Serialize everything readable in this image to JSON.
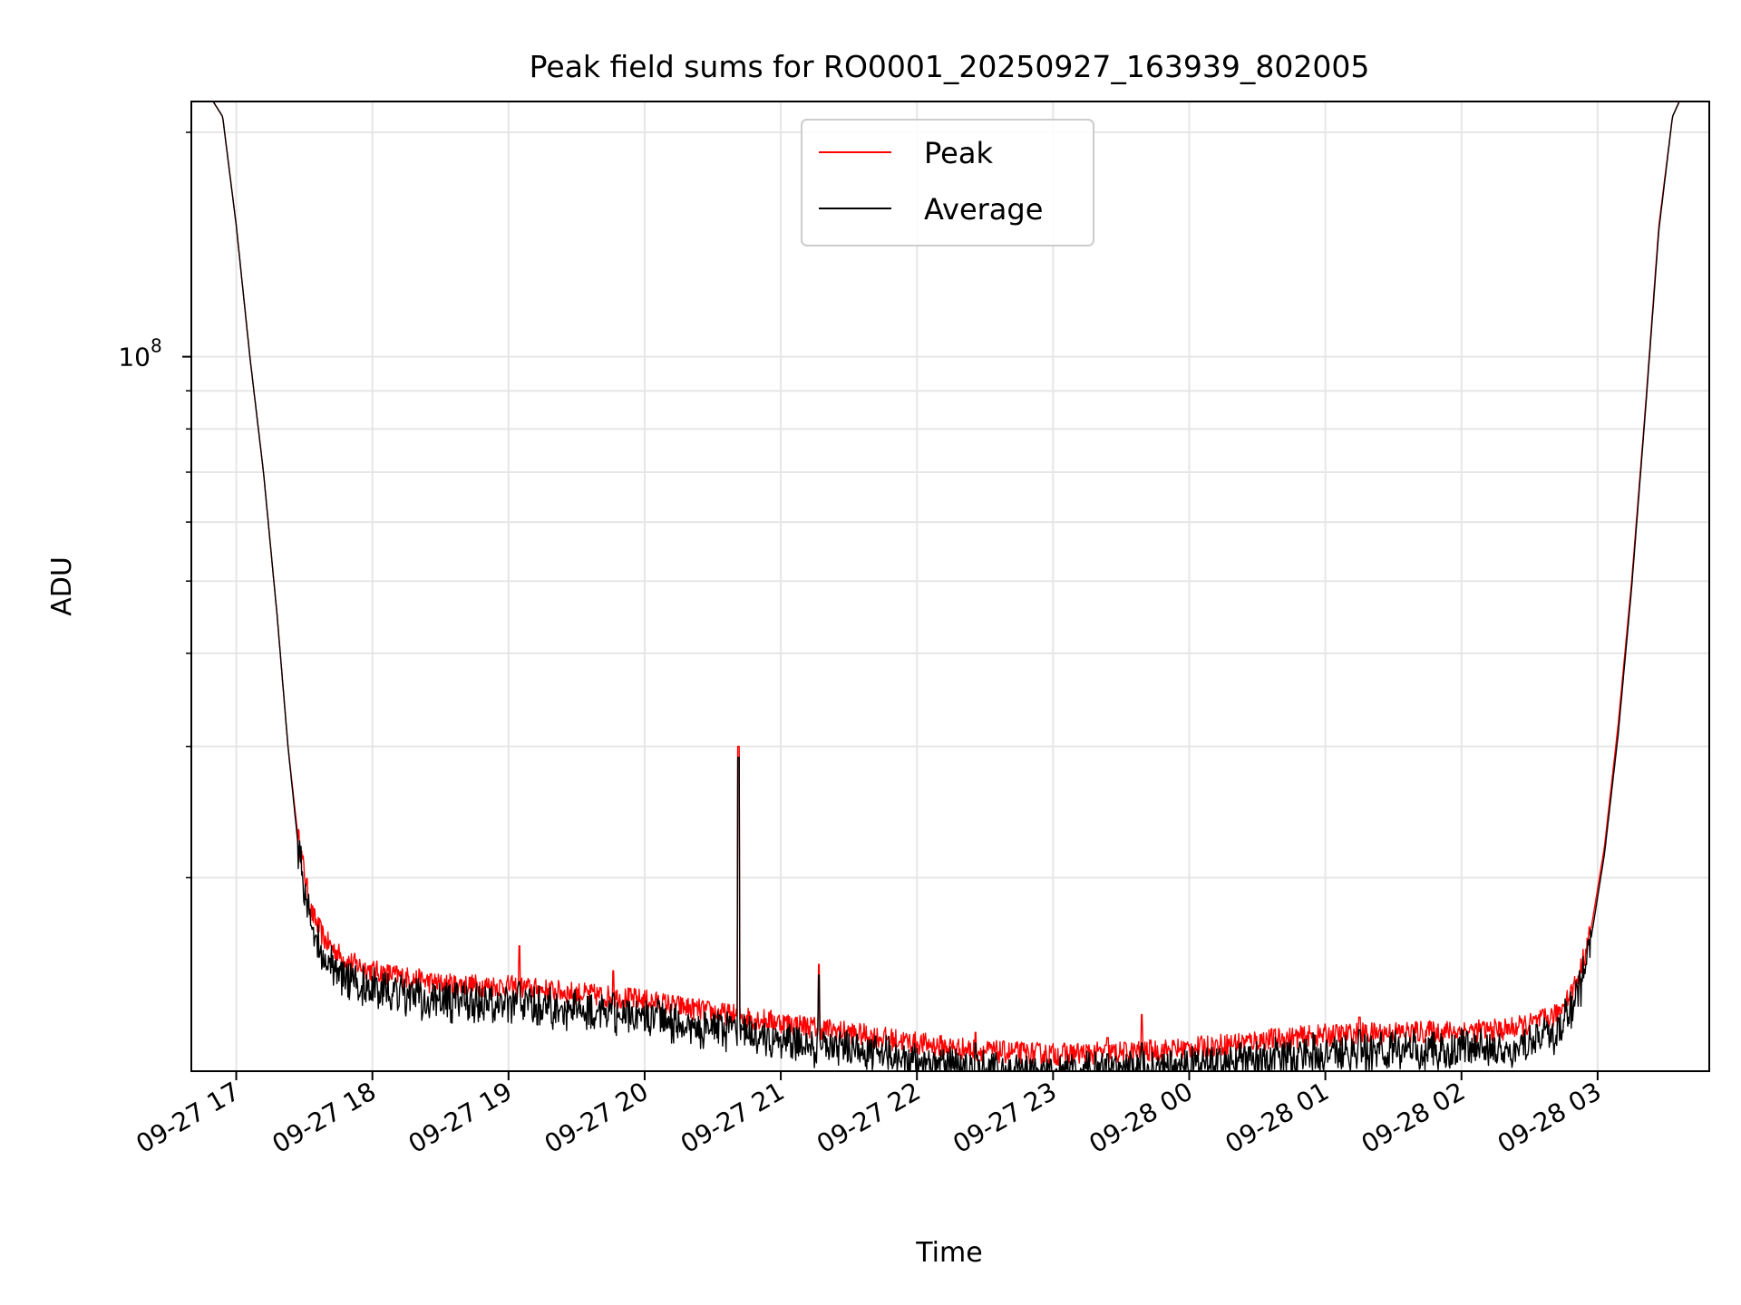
{
  "chart_data": {
    "type": "line",
    "title": "Peak field sums for RO0001_20250927_163939_802005",
    "xlabel": "Time",
    "ylabel": "ADU",
    "yscale": "log",
    "ylim": [
      11000000,
      220000000
    ],
    "xlim_hours": [
      -0.33,
      10.82
    ],
    "grid": true,
    "legend_position": "top-center",
    "x_ticks": [
      {
        "hour": 0,
        "label": "09-27 17"
      },
      {
        "hour": 1,
        "label": "09-27 18"
      },
      {
        "hour": 2,
        "label": "09-27 19"
      },
      {
        "hour": 3,
        "label": "09-27 20"
      },
      {
        "hour": 4,
        "label": "09-27 21"
      },
      {
        "hour": 5,
        "label": "09-27 22"
      },
      {
        "hour": 6,
        "label": "09-27 23"
      },
      {
        "hour": 7,
        "label": "09-28 00"
      },
      {
        "hour": 8,
        "label": "09-28 01"
      },
      {
        "hour": 9,
        "label": "09-28 02"
      },
      {
        "hour": 10,
        "label": "09-28 03"
      }
    ],
    "y_major_tick": {
      "value": 100000000,
      "base": "10",
      "exp": "8"
    },
    "y_minor_ticks": [
      20000000,
      30000000,
      40000000,
      50000000,
      60000000,
      70000000,
      80000000,
      90000000,
      200000000
    ],
    "series": [
      {
        "name": "Peak",
        "color": "#ff0000",
        "x_hours": [
          -0.33,
          -0.17,
          -0.1,
          0.0,
          0.1,
          0.2,
          0.3,
          0.38,
          0.45,
          0.55,
          0.65,
          0.8,
          1.0,
          1.5,
          2.0,
          2.5,
          3.0,
          3.5,
          4.0,
          4.5,
          5.0,
          5.5,
          6.0,
          6.5,
          7.0,
          7.5,
          8.0,
          8.5,
          9.0,
          9.3,
          9.5,
          9.7,
          9.85,
          9.95,
          10.05,
          10.15,
          10.25,
          10.35,
          10.45,
          10.55,
          10.6,
          10.82
        ],
        "values": [
          220000000,
          220000000,
          210000000,
          150000000,
          100000000,
          70000000,
          45000000,
          30000000,
          23000000,
          18000000,
          16500000,
          15500000,
          15000000,
          14400000,
          14300000,
          14000000,
          13700000,
          13200000,
          12800000,
          12400000,
          12000000,
          11700000,
          11600000,
          11650000,
          11800000,
          12100000,
          12300000,
          12400000,
          12450000,
          12500000,
          12700000,
          13100000,
          14500000,
          17000000,
          22000000,
          32000000,
          50000000,
          85000000,
          150000000,
          210000000,
          220000000,
          220000000
        ]
      },
      {
        "name": "Average",
        "color": "#000000",
        "x_hours": [
          -0.33,
          -0.17,
          -0.1,
          0.0,
          0.1,
          0.2,
          0.3,
          0.38,
          0.45,
          0.55,
          0.65,
          0.8,
          1.0,
          1.5,
          2.0,
          2.5,
          3.0,
          3.5,
          4.0,
          4.5,
          5.0,
          5.5,
          6.0,
          6.5,
          7.0,
          7.5,
          8.0,
          8.5,
          9.0,
          9.3,
          9.5,
          9.7,
          9.85,
          9.95,
          10.05,
          10.15,
          10.25,
          10.35,
          10.45,
          10.55,
          10.6,
          10.82
        ],
        "values": [
          220000000,
          220000000,
          210000000,
          150000000,
          100000000,
          70000000,
          45000000,
          30000000,
          22500000,
          17500000,
          15800000,
          14900000,
          14400000,
          13900000,
          13800000,
          13500000,
          13200000,
          12700000,
          12300000,
          11900000,
          11500000,
          11200000,
          11100000,
          11150000,
          11300000,
          11600000,
          11800000,
          11900000,
          11950000,
          12000000,
          12200000,
          12600000,
          14000000,
          16500000,
          21500000,
          31000000,
          49000000,
          84000000,
          148000000,
          210000000,
          220000000,
          220000000
        ]
      }
    ],
    "spikes": [
      {
        "hour": 2.08,
        "peak": 16200000,
        "average": 14500000
      },
      {
        "hour": 2.77,
        "peak": 15000000,
        "average": 14000000
      },
      {
        "hour": 3.69,
        "peak": 30000000,
        "average": 29000000
      },
      {
        "hour": 4.28,
        "peak": 15300000,
        "average": 14800000
      },
      {
        "hour": 5.43,
        "peak": 12400000,
        "average": 12000000
      },
      {
        "hour": 6.4,
        "peak": 12200000,
        "average": 11600000
      },
      {
        "hour": 6.65,
        "peak": 13100000,
        "average": 12000000
      },
      {
        "hour": 8.25,
        "peak": 13000000,
        "average": 12500000
      }
    ]
  }
}
